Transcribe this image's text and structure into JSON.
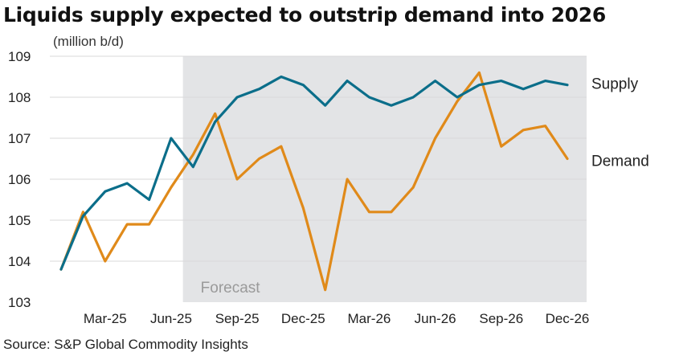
{
  "title": "Liquids supply expected to outstrip demand into 2026",
  "unit_label": "(million b/d)",
  "source": "Source: S&P Global Commodity Insights",
  "forecast_label": "Forecast",
  "colors": {
    "supply": "#0b6e8a",
    "demand": "#e08a1a",
    "forecast_bg": "#e3e4e6",
    "grid": "#d9d9d9"
  },
  "chart_data": {
    "type": "line",
    "x": [
      "Jan-25",
      "Feb-25",
      "Mar-25",
      "Apr-25",
      "May-25",
      "Jun-25",
      "Jul-25",
      "Aug-25",
      "Sep-25",
      "Oct-25",
      "Nov-25",
      "Dec-25",
      "Jan-26",
      "Feb-26",
      "Mar-26",
      "Apr-26",
      "May-26",
      "Jun-26",
      "Jul-26",
      "Aug-26",
      "Sep-26",
      "Oct-26",
      "Nov-26",
      "Dec-26"
    ],
    "x_tick_labels": [
      {
        "index": 2,
        "label": "Mar-25"
      },
      {
        "index": 5,
        "label": "Jun-25"
      },
      {
        "index": 8,
        "label": "Sep-25"
      },
      {
        "index": 11,
        "label": "Dec-25"
      },
      {
        "index": 14,
        "label": "Mar-26"
      },
      {
        "index": 17,
        "label": "Jun-26"
      },
      {
        "index": 20,
        "label": "Sep-26"
      },
      {
        "index": 23,
        "label": "Dec-26"
      }
    ],
    "forecast_start": "Jul-25",
    "ylim": [
      103,
      109
    ],
    "y_ticks": [
      103,
      104,
      105,
      106,
      107,
      108,
      109
    ],
    "grid": true,
    "series": [
      {
        "name": "Supply",
        "color_key": "supply",
        "values": [
          103.8,
          105.1,
          105.7,
          105.9,
          105.5,
          107.0,
          106.3,
          107.4,
          108.0,
          108.2,
          108.5,
          108.3,
          107.8,
          108.4,
          108.0,
          107.8,
          108.0,
          108.4,
          108.0,
          108.3,
          108.4,
          108.2,
          108.4,
          108.3
        ]
      },
      {
        "name": "Demand",
        "color_key": "demand",
        "values": [
          103.8,
          105.2,
          104.0,
          104.9,
          104.9,
          105.8,
          106.6,
          107.6,
          106.0,
          106.5,
          106.8,
          105.3,
          103.3,
          106.0,
          105.2,
          105.2,
          105.8,
          107.0,
          107.9,
          108.6,
          106.8,
          107.2,
          107.3,
          106.5
        ]
      }
    ]
  }
}
